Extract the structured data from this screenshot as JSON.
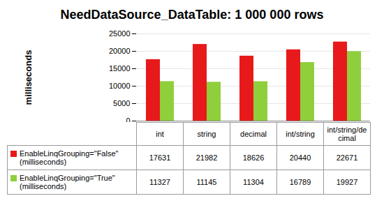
{
  "chart_data": {
    "type": "bar",
    "title": "NeedDataSource_DataTable: 1 000 000 rows",
    "y_label": "milliseconds",
    "categories": [
      "int",
      "string",
      "decimal",
      "int/string",
      "int/string/decimal"
    ],
    "series": [
      {
        "name": "EnableLinqGrouping=\"False\" (milliseconds)",
        "color": "#e8191a",
        "values": [
          17631,
          21982,
          18626,
          20440,
          22671
        ]
      },
      {
        "name": "EnableLinqGrouping=\"True\" (milliseconds)",
        "color": "#8fcf3c",
        "values": [
          11327,
          11145,
          11304,
          16789,
          19927
        ]
      }
    ],
    "ylim": [
      0,
      25000
    ],
    "yticks": [
      0,
      5000,
      10000,
      15000,
      20000,
      25000
    ],
    "grid": true
  }
}
